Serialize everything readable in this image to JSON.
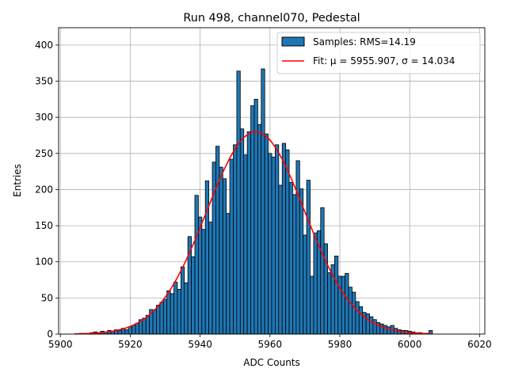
{
  "chart_data": {
    "type": "bar",
    "title": "Run 498, channel070, Pedestal",
    "xlabel": "ADC Counts",
    "ylabel": "Entries",
    "xlim": [
      5899.5,
      6021.5
    ],
    "ylim": [
      0,
      424
    ],
    "xticks": [
      5900,
      5920,
      5940,
      5960,
      5980,
      6000,
      6020
    ],
    "yticks": [
      0,
      50,
      100,
      150,
      200,
      250,
      300,
      350,
      400
    ],
    "grid": true,
    "legend_position": "top-right",
    "bin_width": 1,
    "bin_centers": [
      5905,
      5906,
      5907,
      5908,
      5909,
      5910,
      5911,
      5912,
      5913,
      5914,
      5915,
      5916,
      5917,
      5918,
      5919,
      5920,
      5921,
      5922,
      5923,
      5924,
      5925,
      5926,
      5927,
      5928,
      5929,
      5930,
      5931,
      5932,
      5933,
      5934,
      5935,
      5936,
      5937,
      5938,
      5939,
      5940,
      5941,
      5942,
      5943,
      5944,
      5945,
      5946,
      5947,
      5948,
      5949,
      5950,
      5951,
      5952,
      5953,
      5954,
      5955,
      5956,
      5957,
      5958,
      5959,
      5960,
      5961,
      5962,
      5963,
      5964,
      5965,
      5966,
      5967,
      5968,
      5969,
      5970,
      5971,
      5972,
      5973,
      5974,
      5975,
      5976,
      5977,
      5978,
      5979,
      5980,
      5981,
      5982,
      5983,
      5984,
      5985,
      5986,
      5987,
      5988,
      5989,
      5990,
      5991,
      5992,
      5993,
      5994,
      5995,
      5996,
      5997,
      5998,
      5999,
      6000,
      6001,
      6002,
      6003,
      6004,
      6005,
      6006
    ],
    "values": [
      0,
      1,
      0,
      1,
      2,
      3,
      2,
      4,
      3,
      5,
      4,
      6,
      5,
      8,
      6,
      10,
      12,
      15,
      20,
      22,
      26,
      34,
      33,
      40,
      44,
      48,
      60,
      56,
      72,
      62,
      93,
      71,
      135,
      107,
      192,
      162,
      145,
      212,
      155,
      238,
      260,
      231,
      215,
      167,
      242,
      262,
      364,
      284,
      248,
      280,
      316,
      325,
      290,
      367,
      277,
      250,
      245,
      262,
      206,
      264,
      255,
      210,
      193,
      240,
      201,
      137,
      213,
      80,
      140,
      143,
      175,
      125,
      85,
      96,
      108,
      80,
      80,
      84,
      65,
      58,
      45,
      38,
      30,
      28,
      24,
      20,
      16,
      14,
      12,
      10,
      12,
      8,
      6,
      5,
      5,
      4,
      3,
      2,
      2,
      1,
      1,
      5
    ],
    "series": [
      {
        "name": "Samples: RMS=14.19",
        "kind": "histogram",
        "face_color": "#1f77b4",
        "edge_color": "#000000"
      },
      {
        "name": "Fit: μ = 5955.907, σ = 14.034",
        "kind": "gaussian-fit",
        "mu": 5955.907,
        "sigma": 14.034,
        "amplitude": 280,
        "x_range": [
          5904,
          6006
        ],
        "color": "#ff0000"
      }
    ]
  }
}
